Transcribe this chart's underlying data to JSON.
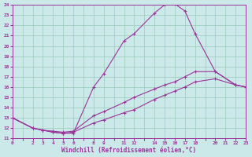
{
  "xlabel": "Windchill (Refroidissement éolien,°C)",
  "ylabel": "",
  "xlim": [
    0,
    23
  ],
  "ylim": [
    11,
    24
  ],
  "xtick_positions": [
    0,
    1,
    2,
    3,
    4,
    5,
    6,
    7,
    8,
    9,
    10,
    11,
    12,
    13,
    14,
    15,
    16,
    17,
    18,
    19,
    20,
    21,
    22,
    23
  ],
  "xtick_labels": [
    "0",
    "",
    "2",
    "3",
    "4",
    "5",
    "6",
    "",
    "8",
    "9",
    "",
    "11",
    "12",
    "",
    "14",
    "15",
    "16",
    "17",
    "18",
    "",
    "20",
    "21",
    "22",
    "23"
  ],
  "ytick_positions": [
    11,
    12,
    13,
    14,
    15,
    16,
    17,
    18,
    19,
    20,
    21,
    22,
    23,
    24
  ],
  "ytick_labels": [
    "11",
    "12",
    "13",
    "14",
    "15",
    "16",
    "17",
    "18",
    "19",
    "20",
    "21",
    "22",
    "23",
    "24"
  ],
  "bg_color": "#cce9e9",
  "line_color": "#993399",
  "grid_color": "#99ccbb",
  "lines": [
    {
      "x": [
        0,
        2,
        3,
        4,
        5,
        6,
        8,
        9,
        11,
        12,
        14,
        15,
        16,
        17,
        18,
        20,
        22,
        23
      ],
      "y": [
        13,
        12,
        11.8,
        11.6,
        11.5,
        11.5,
        16.0,
        17.3,
        20.5,
        21.2,
        23.2,
        24.0,
        24.1,
        23.4,
        21.2,
        17.5,
        16.2,
        16.0
      ]
    },
    {
      "x": [
        0,
        2,
        3,
        4,
        5,
        6,
        8,
        9,
        11,
        12,
        14,
        15,
        16,
        17,
        18,
        20,
        22,
        23
      ],
      "y": [
        13,
        12,
        11.8,
        11.7,
        11.6,
        11.7,
        13.2,
        13.6,
        14.5,
        15.0,
        15.8,
        16.2,
        16.5,
        17.0,
        17.5,
        17.5,
        16.2,
        16.0
      ]
    },
    {
      "x": [
        0,
        2,
        3,
        4,
        5,
        6,
        8,
        9,
        11,
        12,
        14,
        15,
        16,
        17,
        18,
        20,
        22,
        23
      ],
      "y": [
        13,
        12,
        11.8,
        11.6,
        11.5,
        11.6,
        12.5,
        12.8,
        13.5,
        13.8,
        14.8,
        15.2,
        15.6,
        16.0,
        16.5,
        16.8,
        16.2,
        16.0
      ]
    }
  ]
}
